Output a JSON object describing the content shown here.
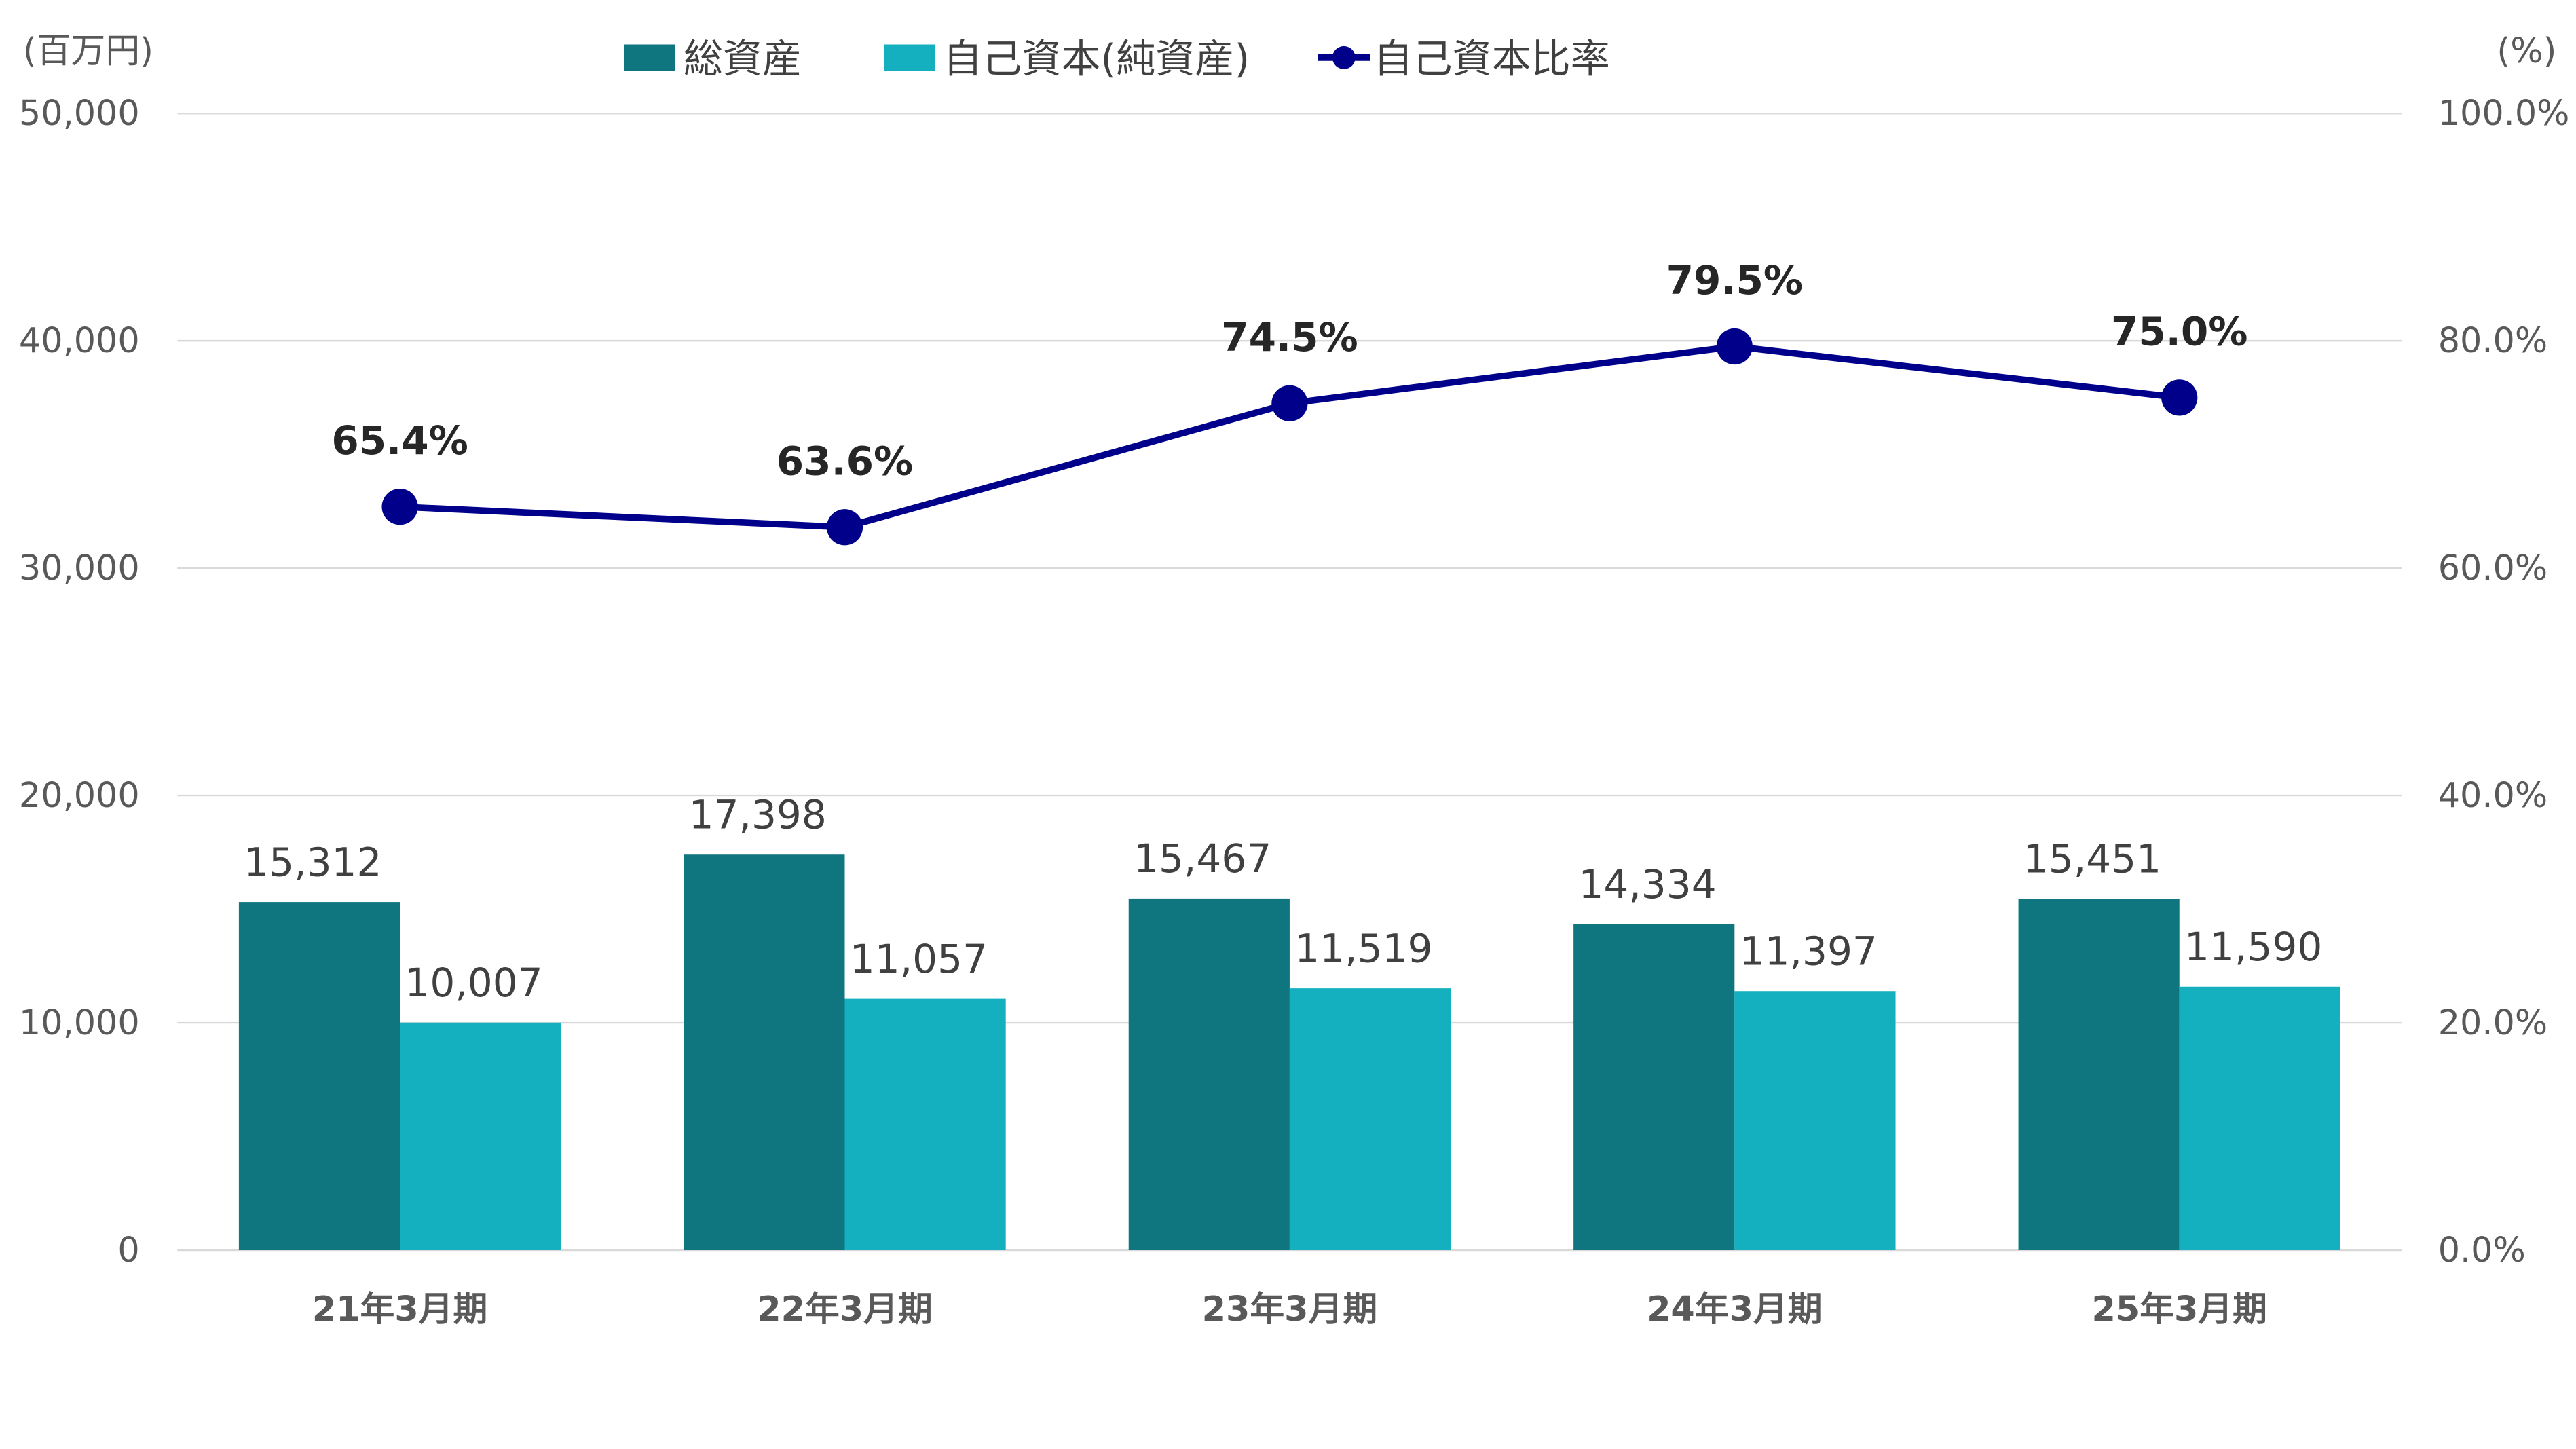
{
  "chart_data": {
    "type": "bar",
    "title": "",
    "left_axis_label": "(百万円)",
    "right_axis_label": "(%)",
    "categories": [
      "21年3月期",
      "22年3月期",
      "23年3月期",
      "24年3月期",
      "25年3月期"
    ],
    "ylim": [
      0,
      50000
    ],
    "y_ticks": [
      0,
      10000,
      20000,
      30000,
      40000,
      50000
    ],
    "y_tick_labels": [
      "0",
      "10,000",
      "20,000",
      "30,000",
      "40,000",
      "50,000"
    ],
    "y2lim": [
      0,
      100
    ],
    "y2_ticks": [
      0,
      20,
      40,
      60,
      80,
      100
    ],
    "y2_tick_labels": [
      "0.0%",
      "20.0%",
      "40.0%",
      "60.0%",
      "80.0%",
      "100.0%"
    ],
    "grid": true,
    "legend_position": "top",
    "series": [
      {
        "name": "総資産",
        "type": "bar",
        "color": "#0f7680",
        "values": [
          15312,
          17398,
          15467,
          14334,
          15451
        ],
        "labels": [
          "15,312",
          "17,398",
          "15,467",
          "14,334",
          "15,451"
        ]
      },
      {
        "name": "自己資本(純資産)",
        "type": "bar",
        "color": "#14b0c0",
        "values": [
          10007,
          11057,
          11519,
          11397,
          11590
        ],
        "labels": [
          "10,007",
          "11,057",
          "11,519",
          "11,397",
          "11,590"
        ]
      },
      {
        "name": "自己資本比率",
        "type": "line",
        "axis": "right",
        "color": "#00008b",
        "values": [
          65.4,
          63.6,
          74.5,
          79.5,
          75.0
        ],
        "labels": [
          "65.4%",
          "63.6%",
          "74.5%",
          "79.5%",
          "75.0%"
        ]
      }
    ]
  }
}
